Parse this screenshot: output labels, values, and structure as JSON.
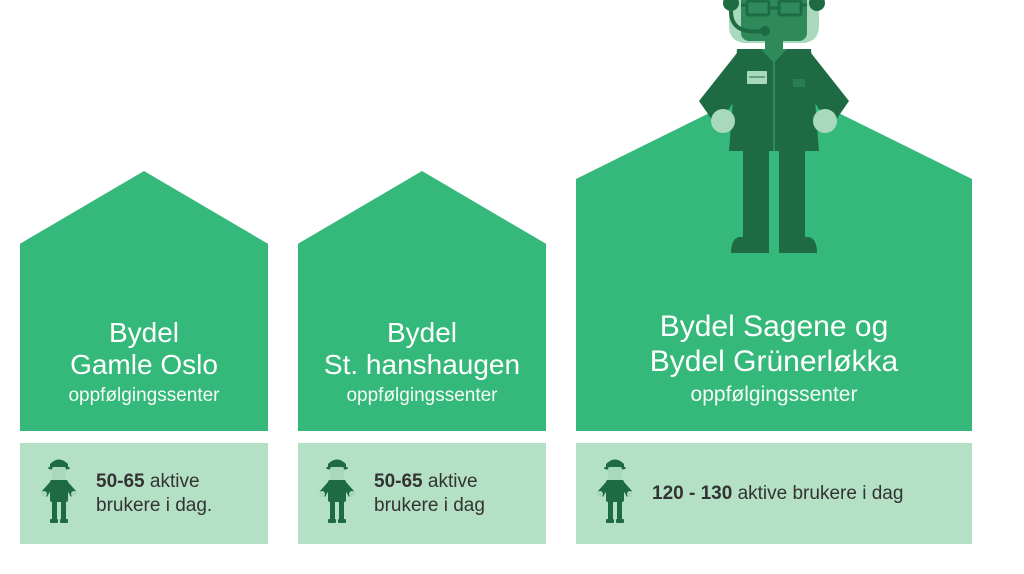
{
  "colors": {
    "house_fill": "#34b97a",
    "stat_bg": "#b4e0c5",
    "operator_dark": "#1e6b43",
    "operator_mid": "#2f8a5a",
    "operator_light": "#a9d9bd",
    "operator_skin": "#bfe8cf",
    "text_dark": "#333333"
  },
  "cards": [
    {
      "size": "small",
      "line1": "Bydel",
      "line2": "Gamle Oslo",
      "sub": "oppfølgingssenter",
      "count": "50-65",
      "rest": " aktive brukere i dag.",
      "show_operator": false
    },
    {
      "size": "small",
      "line1": "Bydel",
      "line2": "St. hanshaugen",
      "sub": "oppfølgingssenter",
      "count": "50-65",
      "rest": " aktive brukere i dag",
      "show_operator": false
    },
    {
      "size": "large",
      "line1": "Bydel Sagene og",
      "line2": "Bydel Grünerløkka",
      "sub": "oppfølgingssenter",
      "count": "120 - 130",
      "rest": " aktive brukere i dag",
      "show_operator": true
    }
  ]
}
